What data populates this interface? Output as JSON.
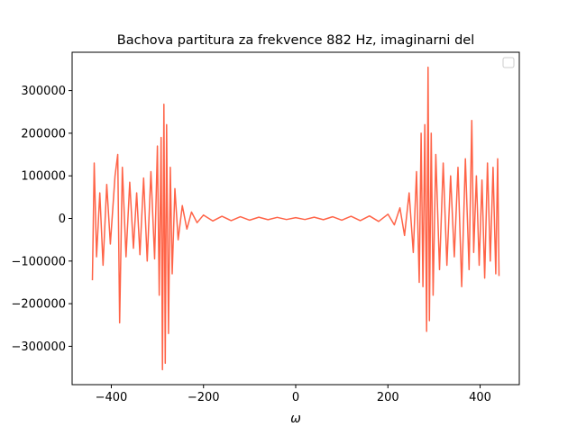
{
  "chart_data": {
    "type": "line",
    "title": "Bachova partitura za frekvence 882 Hz, imaginarni del",
    "xlabel": "ω",
    "ylabel": "",
    "xlim": [
      -485,
      485
    ],
    "ylim": [
      -390000,
      390000
    ],
    "x_ticks": [
      -400,
      -200,
      0,
      200,
      400
    ],
    "x_tick_labels": [
      "−400",
      "−200",
      "0",
      "200",
      "400"
    ],
    "y_ticks": [
      -300000,
      -200000,
      -100000,
      0,
      100000,
      200000,
      300000
    ],
    "y_tick_labels": [
      "−300000",
      "−200000",
      "−100000",
      "0",
      "100000",
      "200000",
      "300000"
    ],
    "grid": false,
    "legend": "top-right, empty",
    "series": [
      {
        "color": "#ff6347",
        "x": [
          -441,
          -437,
          -432,
          -425,
          -418,
          -410,
          -402,
          -392,
          -386,
          -382,
          -376,
          -368,
          -360,
          -352,
          -345,
          -338,
          -330,
          -322,
          -314,
          -306,
          -300,
          -296,
          -292,
          -289,
          -286,
          -283,
          -280,
          -276,
          -272,
          -268,
          -262,
          -255,
          -246,
          -236,
          -226,
          -214,
          -200,
          -180,
          -160,
          -140,
          -120,
          -100,
          -80,
          -60,
          -40,
          -20,
          0,
          20,
          40,
          60,
          80,
          100,
          120,
          140,
          160,
          180,
          200,
          214,
          226,
          236,
          246,
          255,
          262,
          268,
          272,
          276,
          280,
          284,
          287,
          290,
          294,
          298,
          304,
          312,
          320,
          328,
          336,
          344,
          352,
          360,
          368,
          376,
          382,
          386,
          392,
          398,
          404,
          410,
          416,
          422,
          428,
          434,
          438,
          441
        ],
        "values": [
          -145000,
          130000,
          -90000,
          60000,
          -110000,
          80000,
          -60000,
          100000,
          150000,
          -245000,
          120000,
          -90000,
          85000,
          -70000,
          60000,
          -85000,
          95000,
          -100000,
          110000,
          -95000,
          170000,
          -180000,
          190000,
          -355000,
          268000,
          -340000,
          220000,
          -270000,
          120000,
          -130000,
          70000,
          -50000,
          30000,
          -25000,
          15000,
          -10000,
          8000,
          -6000,
          5000,
          -5000,
          4000,
          -4000,
          3000,
          -3000,
          2500,
          -2500,
          2000,
          -2500,
          3000,
          -3000,
          4000,
          -4000,
          5000,
          -5000,
          6000,
          -7000,
          10000,
          -15000,
          25000,
          -40000,
          60000,
          -80000,
          110000,
          -150000,
          200000,
          -160000,
          220000,
          -265000,
          355000,
          -240000,
          200000,
          -180000,
          150000,
          -120000,
          130000,
          -110000,
          100000,
          -90000,
          120000,
          -160000,
          140000,
          -120000,
          230000,
          -80000,
          100000,
          -110000,
          90000,
          -140000,
          130000,
          -100000,
          120000,
          -130000,
          140000,
          -135000
        ]
      }
    ]
  }
}
